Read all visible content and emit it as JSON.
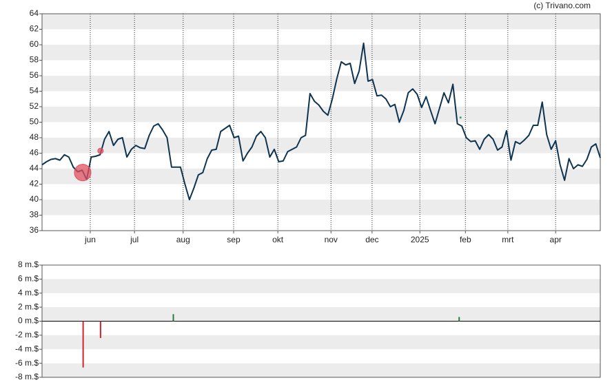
{
  "credit": "(c) Trivano.com",
  "chart_data": [
    {
      "type": "line",
      "color": "#0d3350",
      "xlim": [
        0,
        125
      ],
      "xticks": [
        {
          "value": 10.8,
          "label": "jun"
        },
        {
          "value": 20.7,
          "label": "jul"
        },
        {
          "value": 31.6,
          "label": "aug"
        },
        {
          "value": 42.9,
          "label": "sep"
        },
        {
          "value": 52.8,
          "label": "okt"
        },
        {
          "value": 64.7,
          "label": "nov"
        },
        {
          "value": 73.9,
          "label": "dec"
        },
        {
          "value": 84.6,
          "label": "2025"
        },
        {
          "value": 94.8,
          "label": "feb"
        },
        {
          "value": 104.3,
          "label": "mrt"
        },
        {
          "value": 115,
          "label": "apr"
        }
      ],
      "ylim": [
        36,
        64
      ],
      "yticks": [
        36,
        38,
        40,
        42,
        44,
        46,
        48,
        50,
        52,
        54,
        56,
        58,
        60,
        62,
        64
      ],
      "grid": true,
      "values": [
        44.5,
        44.9,
        45.2,
        45.3,
        45.1,
        45.8,
        45.5,
        44.2,
        43.6,
        43.8,
        42.6,
        45.5,
        45.6,
        45.8,
        47.8,
        48.8,
        47.0,
        47.8,
        48.0,
        45.5,
        46.5,
        47.0,
        46.7,
        46.6,
        48.3,
        49.5,
        49.8,
        49.0,
        48.0,
        44.2,
        44.2,
        44.2,
        42.0,
        40.0,
        41.5,
        43.2,
        43.5,
        45.3,
        46.4,
        46.5,
        48.8,
        49.2,
        49.6,
        48.0,
        48.2,
        45.0,
        46.0,
        46.8,
        48.2,
        48.8,
        48.0,
        45.5,
        46.5,
        44.9,
        45.0,
        46.2,
        46.5,
        46.8,
        48.0,
        48.3,
        53.7,
        52.7,
        52.2,
        51.4,
        50.9,
        53.0,
        55.6,
        57.8,
        57.4,
        57.6,
        55.0,
        56.6,
        60.2,
        55.3,
        55.5,
        53.4,
        53.5,
        53.0,
        52.0,
        52.3,
        50.0,
        51.5,
        53.8,
        54.3,
        53.6,
        51.9,
        53.3,
        51.5,
        49.8,
        51.8,
        53.8,
        52.5,
        54.9,
        49.8,
        49.5,
        48.0,
        47.5,
        47.6,
        46.5,
        47.8,
        48.4,
        47.8,
        46.4,
        46.8,
        48.9,
        45.1,
        47.5,
        47.2,
        47.7,
        48.3,
        49.6,
        49.6,
        52.6,
        48.4,
        46.5,
        47.6,
        44.5,
        42.5,
        45.3,
        44.0,
        44.5,
        44.3,
        45.2,
        46.8,
        47.2,
        45.4
      ],
      "markers": {
        "x": [
          9.1,
          13.1,
          93.7
        ],
        "values": [
          43.5,
          46.3,
          50.6
        ],
        "sizes": [
          12,
          4,
          1
        ],
        "colors": [
          "#e05060",
          "#e05060",
          "#3a9a5a"
        ]
      }
    },
    {
      "type": "bar",
      "xlim": [
        0,
        125
      ],
      "ylim": [
        -8,
        8
      ],
      "yticks": [
        {
          "value": -8,
          "label": "-8 m.$"
        },
        {
          "value": -6,
          "label": "-6 m.$"
        },
        {
          "value": -4,
          "label": "-4 m.$"
        },
        {
          "value": -2,
          "label": "-2 m.$"
        },
        {
          "value": 0,
          "label": "0 m.$"
        },
        {
          "value": 2,
          "label": "2 m.$"
        },
        {
          "value": 4,
          "label": "4 m.$"
        },
        {
          "value": 6,
          "label": "6 m.$"
        },
        {
          "value": 8,
          "label": "8 m.$"
        }
      ],
      "grid": true,
      "x": [
        9.2,
        13.1,
        29.4,
        93.4
      ],
      "values": [
        -6.6,
        -2.4,
        1.0,
        0.6
      ],
      "colors": [
        "#d62030",
        "#d62030",
        "#2a7a3a",
        "#2a7a3a"
      ]
    }
  ]
}
